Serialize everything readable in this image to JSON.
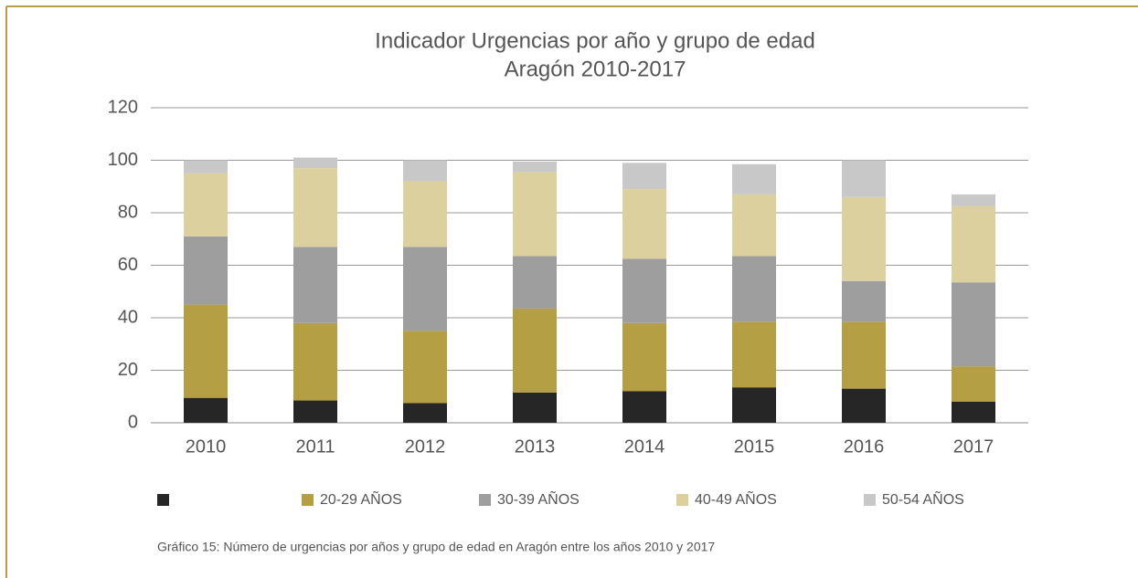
{
  "chart_data": {
    "type": "stacked_bar",
    "title": "Indicador Urgencias por año y grupo de edad",
    "subtitle": "Aragón 2010-2017",
    "caption": "Gráfico 15: Número de urgencias por años y grupo de edad en Aragón entre los años 2010 y 2017",
    "categories": [
      "2010",
      "2011",
      "2012",
      "2013",
      "2014",
      "2015",
      "2016",
      "2017"
    ],
    "series": [
      {
        "color": "#262626",
        "values": [
          9.5,
          8.5,
          7.5,
          11.5,
          12,
          13.5,
          13,
          8
        ]
      },
      {
        "name": "20-29 AÑOS",
        "color": "#b59f44",
        "values": [
          35.5,
          29.5,
          27.5,
          32,
          26,
          25,
          25.5,
          13.5
        ]
      },
      {
        "name": "30-39 AÑOS",
        "color": "#9e9e9e",
        "values": [
          26,
          29,
          32,
          20,
          24.5,
          25,
          15.5,
          32
        ]
      },
      {
        "name": "40-49 AÑOS",
        "color": "#ddd09f",
        "values": [
          24,
          30,
          25,
          32,
          26.5,
          23.5,
          32,
          29
        ]
      },
      {
        "name": "50-54 AÑOS",
        "color": "#c8c8c8",
        "values": [
          5,
          4,
          8,
          4,
          10,
          11.5,
          14,
          4.5
        ]
      }
    ],
    "ylim": [
      0,
      120
    ],
    "yticks": [
      0,
      20,
      40,
      60,
      80,
      100,
      120
    ],
    "grid": true,
    "legend": "bottom"
  }
}
